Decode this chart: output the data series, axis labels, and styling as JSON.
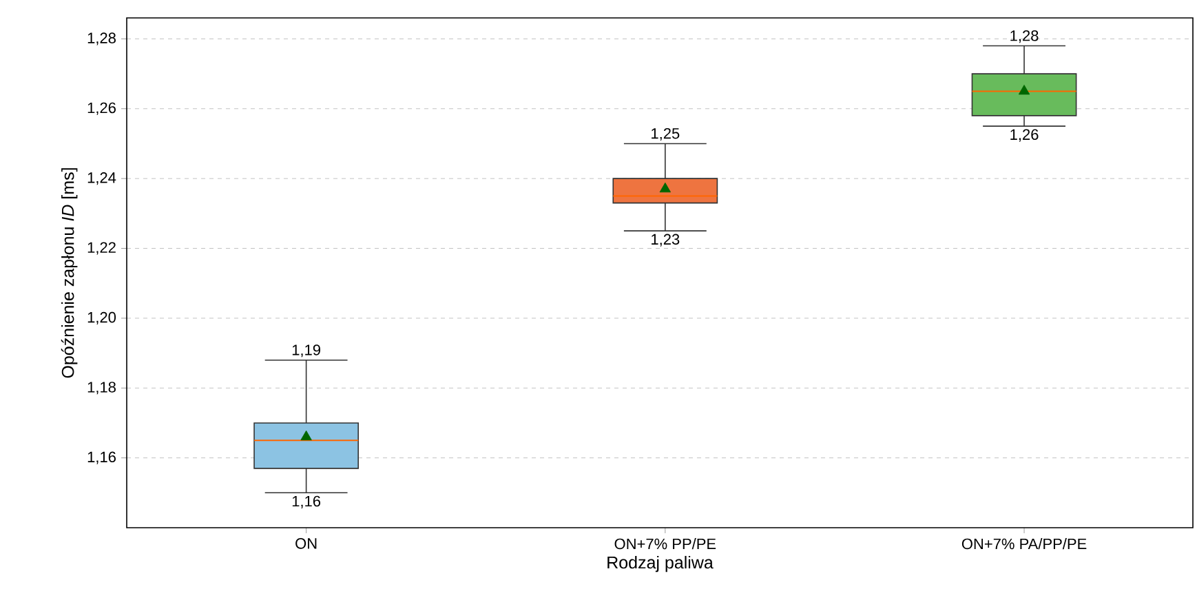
{
  "chart_data": {
    "type": "box",
    "xlabel": "Rodzaj paliwa",
    "ylabel": "Opóźnienie zapłonu *ID* [ms]",
    "categories": [
      "ON",
      "ON+7% PP/PE",
      "ON+7% PA/PP/PE"
    ],
    "boxes": [
      {
        "low": 1.15,
        "q1": 1.157,
        "median": 1.165,
        "q3": 1.17,
        "high": 1.188,
        "mean": 1.166
      },
      {
        "low": 1.225,
        "q1": 1.233,
        "median": 1.235,
        "q3": 1.24,
        "high": 1.25,
        "mean": 1.237
      },
      {
        "low": 1.255,
        "q1": 1.258,
        "median": 1.265,
        "q3": 1.27,
        "high": 1.278,
        "mean": 1.265
      }
    ],
    "colors": [
      "#8cc3e3",
      "#ee7440",
      "#68bb5c"
    ],
    "marker": "triangle",
    "ylim": [
      1.14,
      1.286
    ],
    "yticks": [
      {
        "value": 1.16,
        "label": "1,16"
      },
      {
        "value": 1.18,
        "label": "1,18"
      },
      {
        "value": 1.2,
        "label": "1,20"
      },
      {
        "value": 1.22,
        "label": "1,22"
      },
      {
        "value": 1.24,
        "label": "1,24"
      },
      {
        "value": 1.26,
        "label": "1,26"
      },
      {
        "value": 1.28,
        "label": "1,28"
      }
    ],
    "grid": "y",
    "annotations": [
      {
        "text": "1,19",
        "x": "ON",
        "y": 1.188
      },
      {
        "text": "1,16",
        "x": "ON",
        "y": 1.15
      },
      {
        "text": "1,25",
        "x": "ON+7% PP/PE",
        "y": 1.25
      },
      {
        "text": "1,23",
        "x": "ON+7% PP/PE",
        "y": 1.225
      },
      {
        "text": "1,28",
        "x": "ON+7% PA/PP/PE",
        "y": 1.278
      },
      {
        "text": "1,26",
        "x": "ON+7% PA/PP/PE",
        "y": 1.255
      }
    ]
  }
}
